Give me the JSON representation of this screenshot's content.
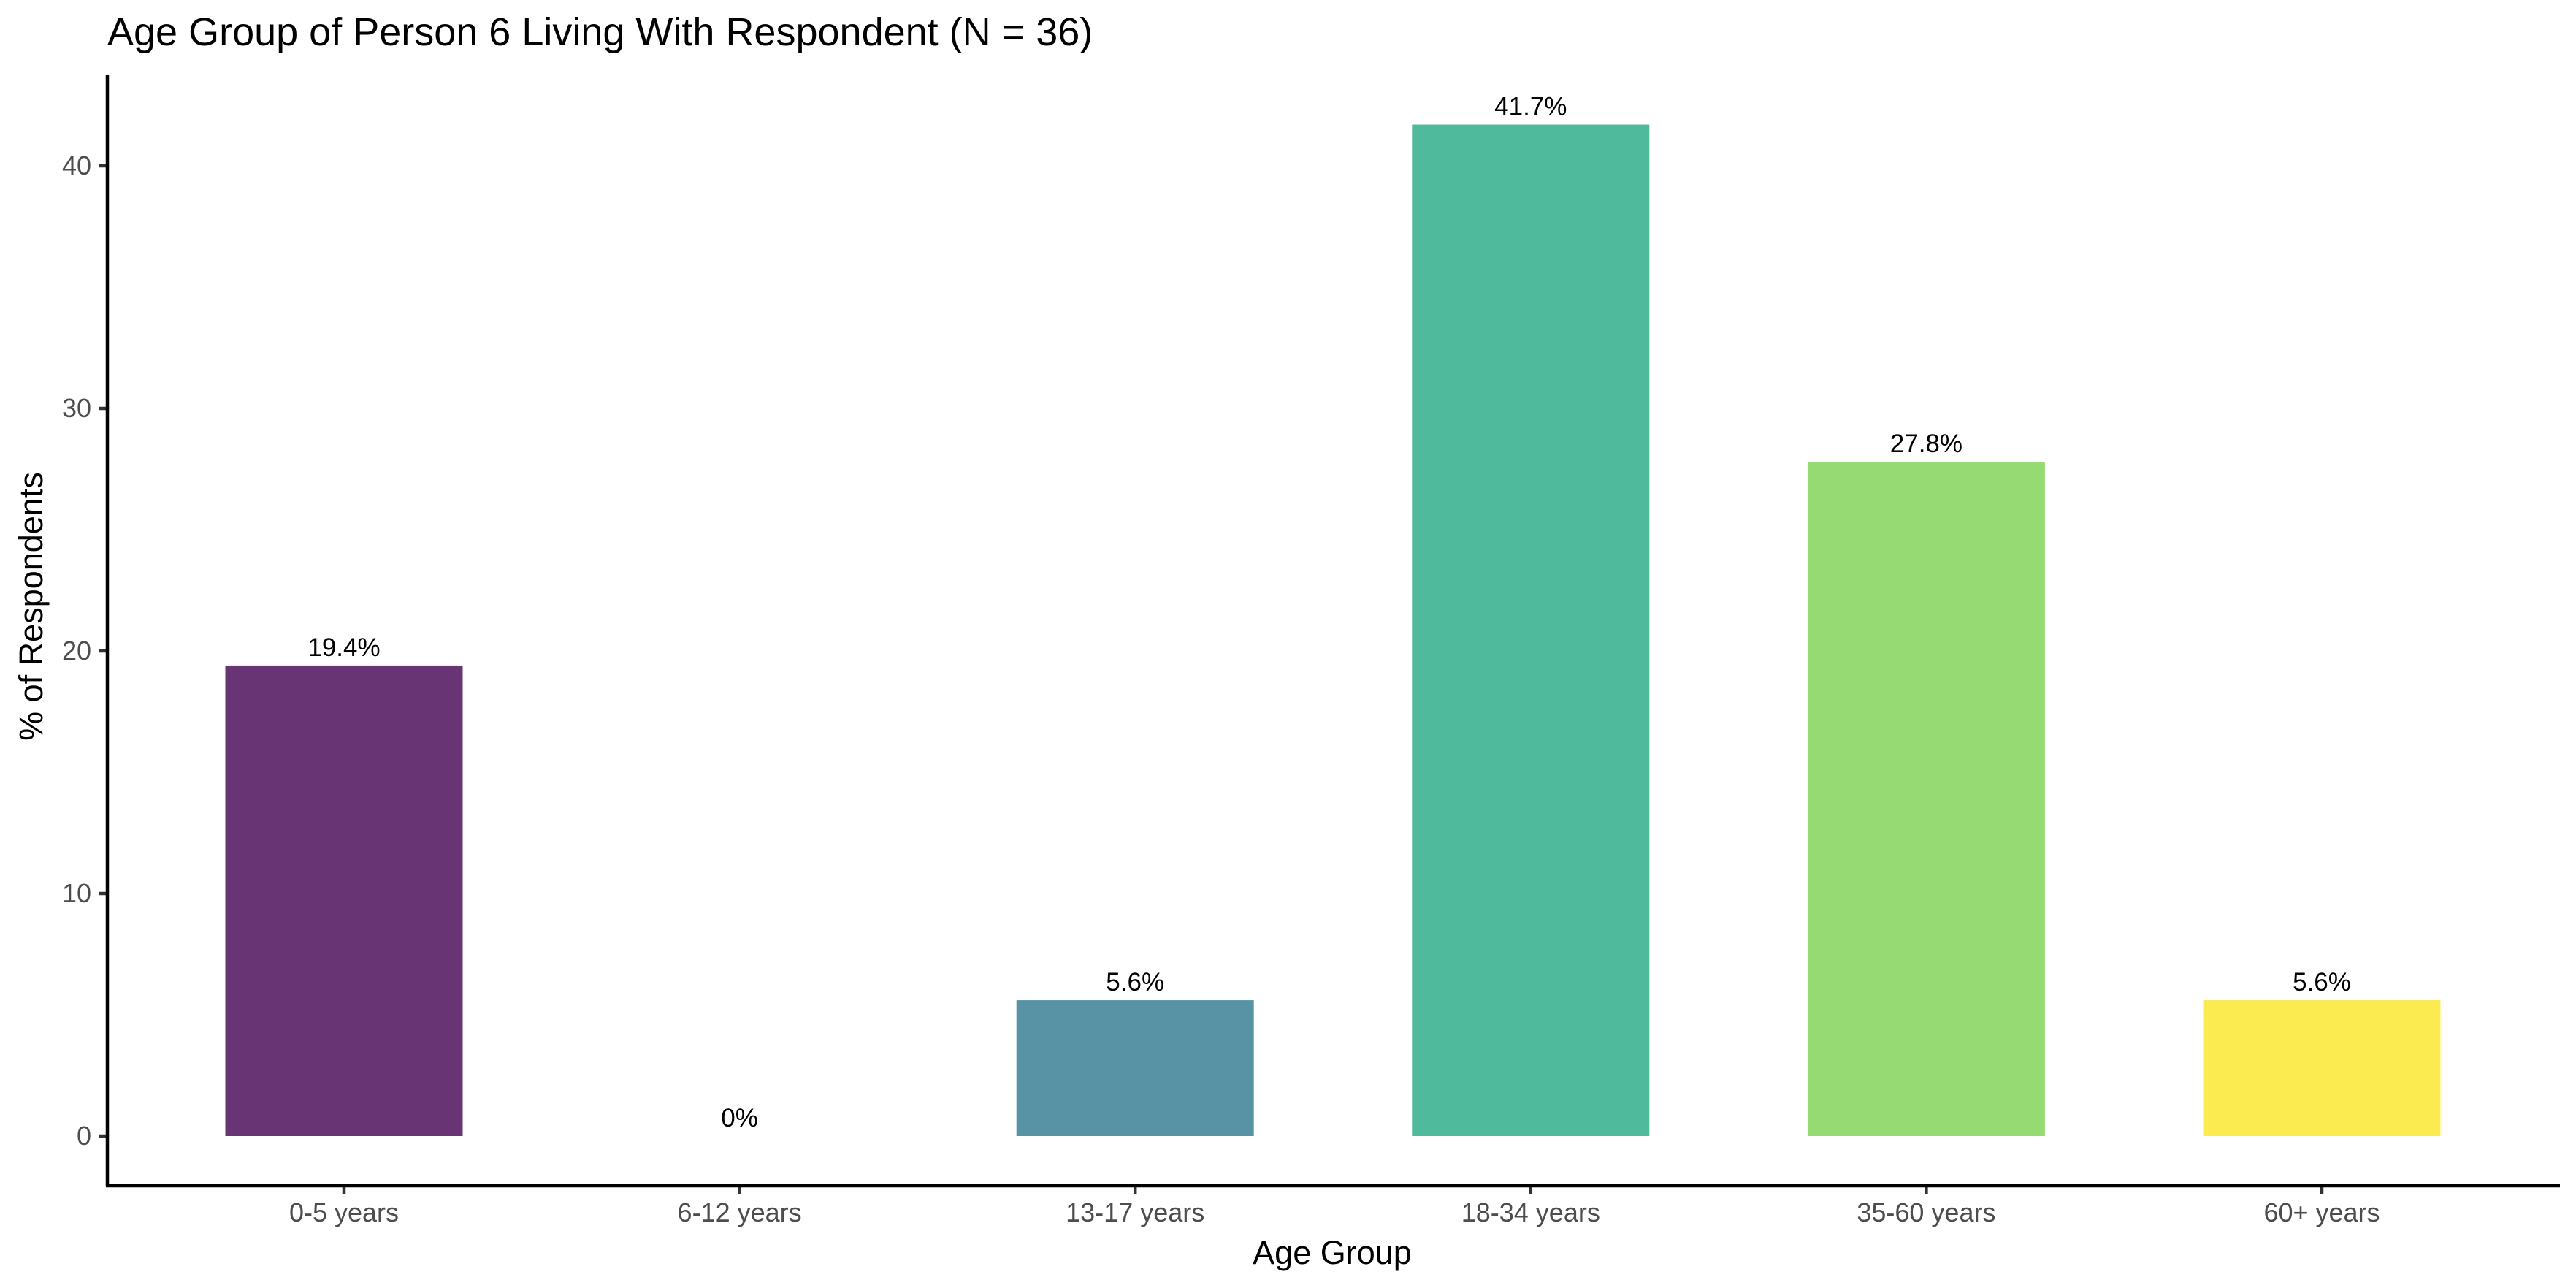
{
  "chart_data": {
    "type": "bar",
    "title": "Age Group of Person 6 Living With Respondent (N = 36)",
    "xlabel": "Age Group",
    "ylabel": "% of Respondents",
    "categories": [
      "0-5 years",
      "6-12 years",
      "13-17 years",
      "18-34 years",
      "35-60 years",
      "60+ years"
    ],
    "values": [
      19.4,
      0,
      5.6,
      41.7,
      27.8,
      5.6
    ],
    "data_labels": [
      "19.4%",
      "0%",
      "5.6%",
      "41.7%",
      "27.8%",
      "5.6%"
    ],
    "colors": [
      "#683474",
      "#6a3575",
      "#5893a5",
      "#4fba9c",
      "#95da73",
      "#fbeb50"
    ],
    "yticks": [
      0,
      10,
      20,
      30,
      40
    ],
    "ylim": [
      0,
      43
    ],
    "grid": false,
    "legend": "none"
  }
}
